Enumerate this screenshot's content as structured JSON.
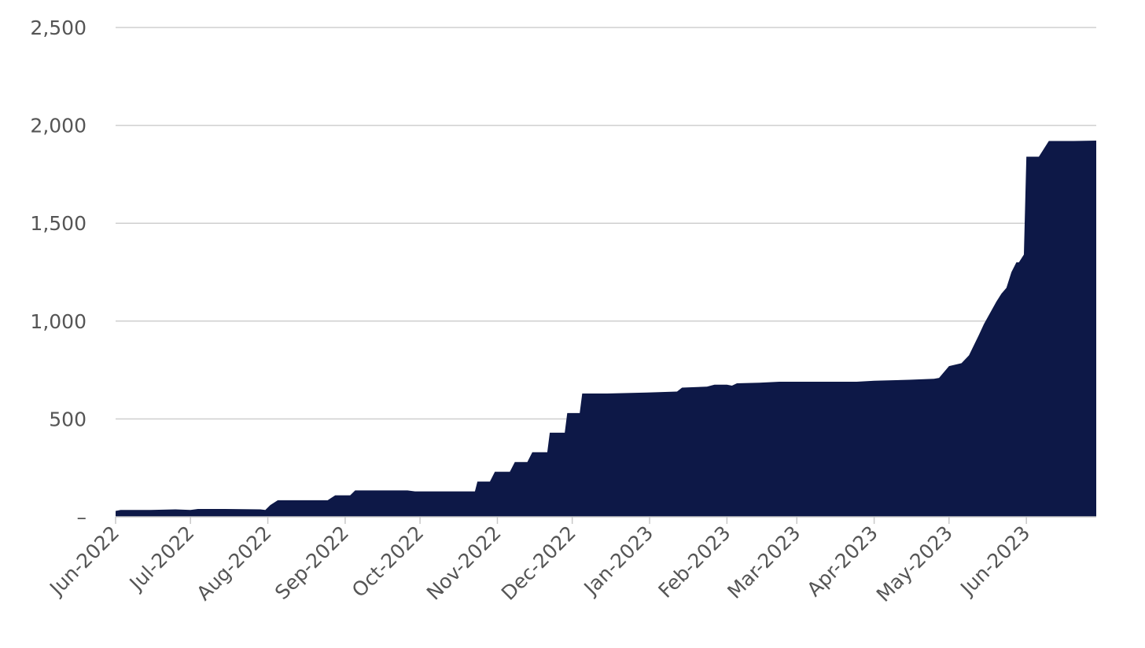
{
  "chart_data": {
    "type": "area",
    "title": "",
    "xlabel": "",
    "ylabel": "",
    "color": "#0d1847",
    "grid": true,
    "legend": "none",
    "x_range": [
      "2022-06-01",
      "2023-06-29"
    ],
    "ylim": [
      0,
      2500
    ],
    "y_ticks": [
      {
        "value": 0,
        "label": "–"
      },
      {
        "value": 500,
        "label": "500"
      },
      {
        "value": 1000,
        "label": "1,000"
      },
      {
        "value": 1500,
        "label": "1,500"
      },
      {
        "value": 2000,
        "label": "2,000"
      },
      {
        "value": 2500,
        "label": "2,500"
      }
    ],
    "x_ticks": [
      {
        "date": "2022-06-01",
        "label": "Jun-2022"
      },
      {
        "date": "2022-07-01",
        "label": "Jul-2022"
      },
      {
        "date": "2022-08-01",
        "label": "Aug-2022"
      },
      {
        "date": "2022-09-01",
        "label": "Sep-2022"
      },
      {
        "date": "2022-10-01",
        "label": "Oct-2022"
      },
      {
        "date": "2022-11-01",
        "label": "Nov-2022"
      },
      {
        "date": "2022-12-01",
        "label": "Dec-2022"
      },
      {
        "date": "2023-01-01",
        "label": "Jan-2023"
      },
      {
        "date": "2023-02-01",
        "label": "Feb-2023"
      },
      {
        "date": "2023-03-01",
        "label": "Mar-2023"
      },
      {
        "date": "2023-04-01",
        "label": "Apr-2023"
      },
      {
        "date": "2023-05-01",
        "label": "May-2023"
      },
      {
        "date": "2023-06-01",
        "label": "Jun-2023"
      }
    ],
    "points": [
      [
        "2022-06-01",
        30
      ],
      [
        "2022-06-03",
        35
      ],
      [
        "2022-06-15",
        35
      ],
      [
        "2022-06-25",
        38
      ],
      [
        "2022-07-01",
        35
      ],
      [
        "2022-07-04",
        40
      ],
      [
        "2022-07-15",
        40
      ],
      [
        "2022-07-29",
        38
      ],
      [
        "2022-07-31",
        35
      ],
      [
        "2022-08-02",
        60
      ],
      [
        "2022-08-05",
        85
      ],
      [
        "2022-08-25",
        85
      ],
      [
        "2022-08-28",
        110
      ],
      [
        "2022-09-03",
        110
      ],
      [
        "2022-09-05",
        135
      ],
      [
        "2022-09-26",
        135
      ],
      [
        "2022-09-29",
        130
      ],
      [
        "2022-10-23",
        130
      ],
      [
        "2022-10-24",
        180
      ],
      [
        "2022-10-29",
        180
      ],
      [
        "2022-10-31",
        230
      ],
      [
        "2022-11-06",
        230
      ],
      [
        "2022-11-08",
        280
      ],
      [
        "2022-11-13",
        280
      ],
      [
        "2022-11-15",
        330
      ],
      [
        "2022-11-21",
        330
      ],
      [
        "2022-11-22",
        430
      ],
      [
        "2022-11-28",
        430
      ],
      [
        "2022-11-29",
        530
      ],
      [
        "2022-12-04",
        530
      ],
      [
        "2022-12-05",
        630
      ],
      [
        "2022-12-15",
        630
      ],
      [
        "2022-12-31",
        635
      ],
      [
        "2023-01-12",
        640
      ],
      [
        "2023-01-14",
        660
      ],
      [
        "2023-01-24",
        665
      ],
      [
        "2023-01-27",
        675
      ],
      [
        "2023-02-01",
        675
      ],
      [
        "2023-02-03",
        670
      ],
      [
        "2023-02-05",
        682
      ],
      [
        "2023-02-14",
        685
      ],
      [
        "2023-02-22",
        690
      ],
      [
        "2023-03-10",
        690
      ],
      [
        "2023-03-25",
        690
      ],
      [
        "2023-04-01",
        695
      ],
      [
        "2023-04-15",
        700
      ],
      [
        "2023-04-25",
        705
      ],
      [
        "2023-04-27",
        710
      ],
      [
        "2023-05-01",
        770
      ],
      [
        "2023-05-06",
        785
      ],
      [
        "2023-05-09",
        825
      ],
      [
        "2023-05-13",
        930
      ],
      [
        "2023-05-15",
        985
      ],
      [
        "2023-05-20",
        1100
      ],
      [
        "2023-05-22",
        1140
      ],
      [
        "2023-05-24",
        1170
      ],
      [
        "2023-05-26",
        1250
      ],
      [
        "2023-05-28",
        1300
      ],
      [
        "2023-05-29",
        1300
      ],
      [
        "2023-05-31",
        1340
      ],
      [
        "2023-06-01",
        1840
      ],
      [
        "2023-06-06",
        1840
      ],
      [
        "2023-06-08",
        1880
      ],
      [
        "2023-06-10",
        1920
      ],
      [
        "2023-06-20",
        1920
      ],
      [
        "2023-06-29",
        1922
      ]
    ]
  }
}
